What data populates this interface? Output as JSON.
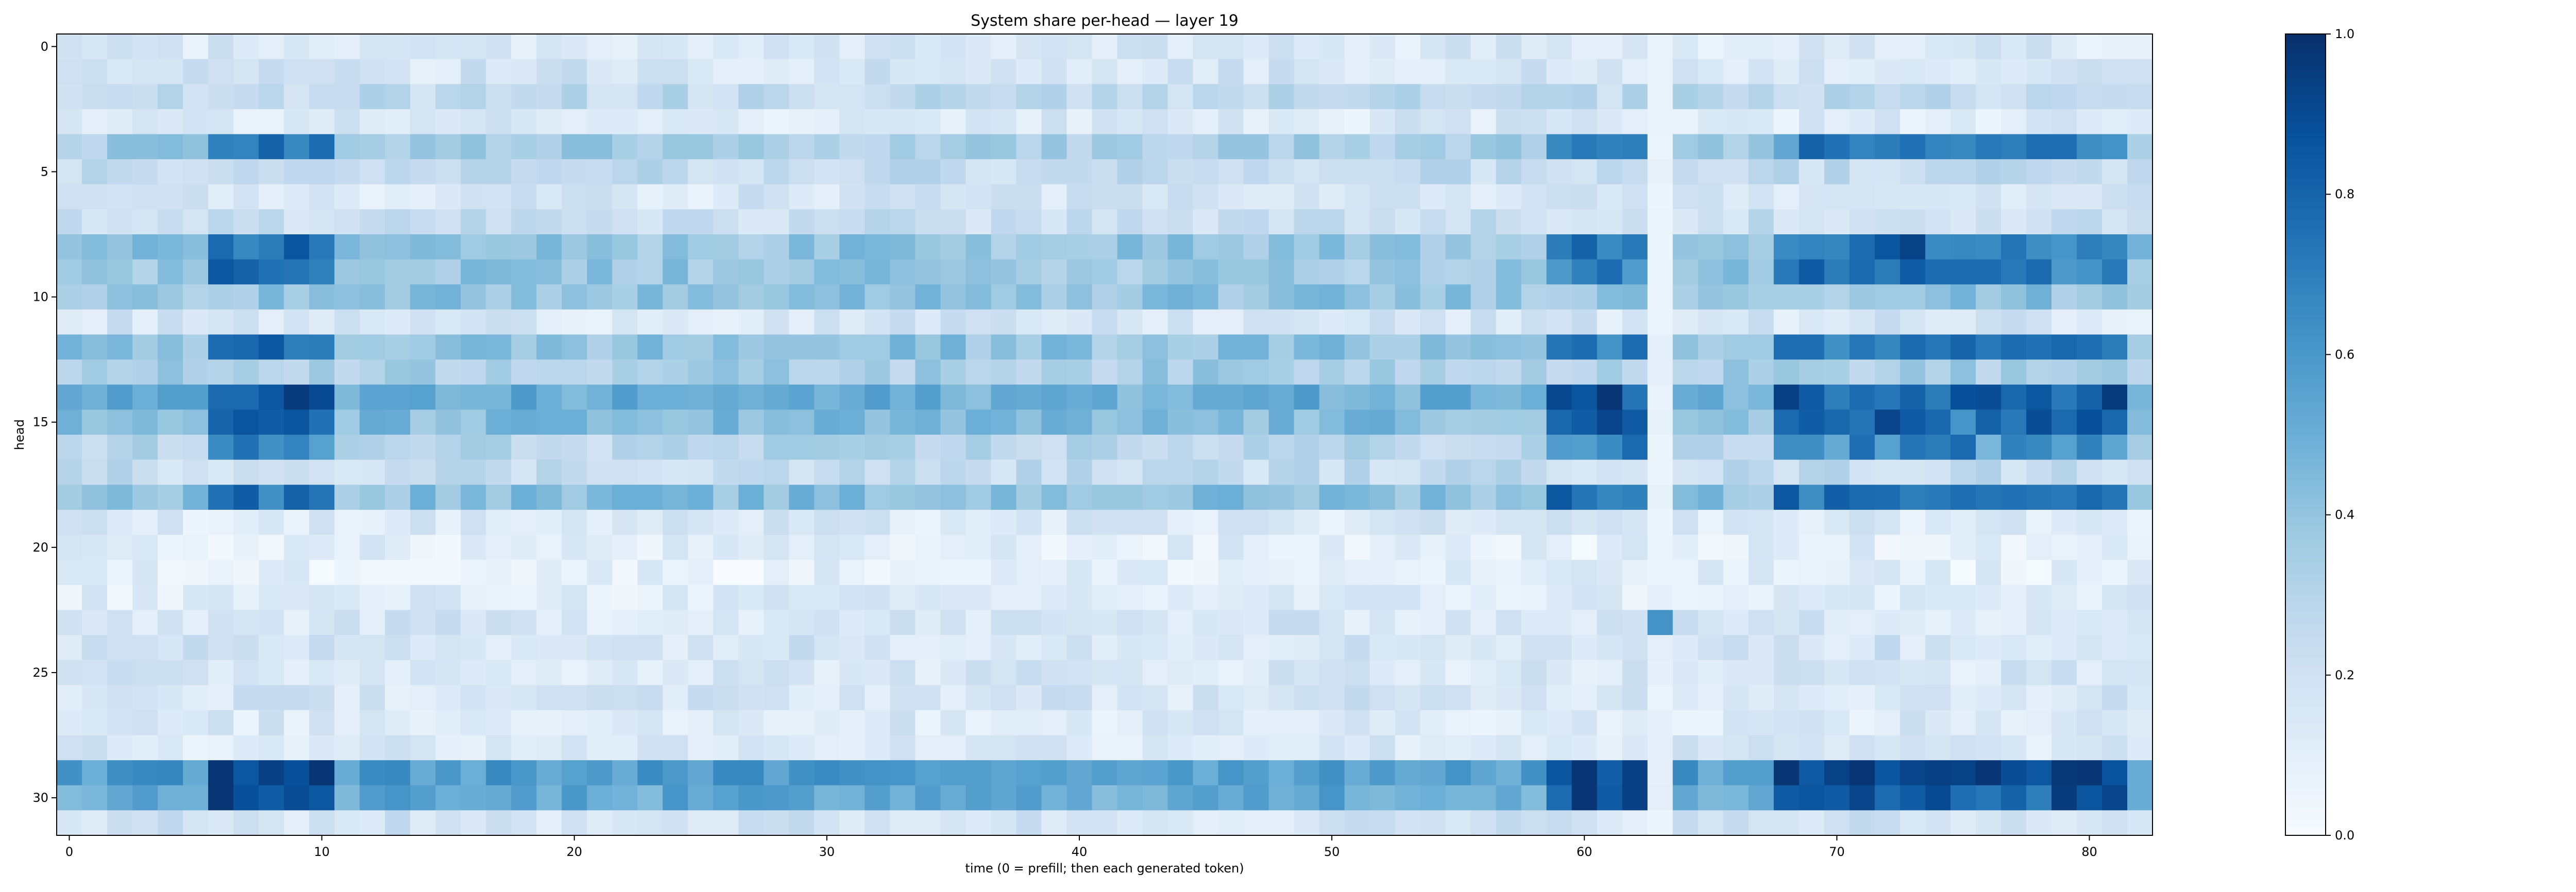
{
  "chart_data": {
    "type": "heatmap",
    "title": "System share per-head — layer 19",
    "xlabel": "time (0 = prefill; then each generated token)",
    "ylabel": "head",
    "n_rows": 32,
    "n_cols": 83,
    "x_ticks": [
      0,
      10,
      20,
      30,
      40,
      50,
      60,
      70,
      80
    ],
    "y_ticks": [
      0,
      5,
      10,
      15,
      20,
      25,
      30
    ],
    "colorbar": {
      "min": 0.0,
      "max": 1.0,
      "ticks": [
        "0.0",
        "0.2",
        "0.4",
        "0.6",
        "0.8",
        "1.0"
      ]
    },
    "colormap": [
      "#f7fbff",
      "#deebf7",
      "#c6dbef",
      "#9ecae1",
      "#6baed6",
      "#4292c6",
      "#2171b5",
      "#08519c",
      "#08306b"
    ],
    "row_base": [
      0.15,
      0.17,
      0.25,
      0.14,
      0.35,
      0.24,
      0.16,
      0.22,
      0.4,
      0.38,
      0.4,
      0.16,
      0.4,
      0.34,
      0.5,
      0.43,
      0.28,
      0.24,
      0.42,
      0.14,
      0.1,
      0.09,
      0.12,
      0.16,
      0.18,
      0.16,
      0.17,
      0.14,
      0.15,
      0.58,
      0.52,
      0.18
    ],
    "values": []
  }
}
